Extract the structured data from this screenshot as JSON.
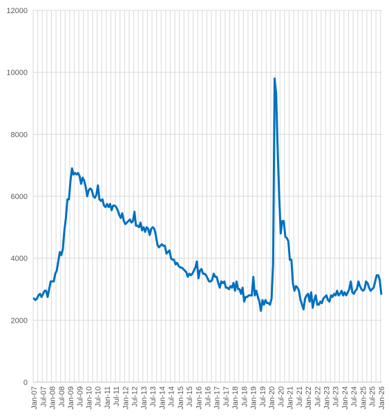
{
  "chart_data": {
    "type": "line",
    "categories": [
      "Jan-07",
      null,
      null,
      null,
      null,
      null,
      "Jul-07",
      null,
      null,
      null,
      null,
      null,
      "Jan-08",
      null,
      null,
      null,
      null,
      null,
      "Jul-08",
      null,
      null,
      null,
      null,
      null,
      "Jan-09",
      null,
      null,
      null,
      null,
      null,
      "Jul-09",
      null,
      null,
      null,
      null,
      null,
      "Jan-10",
      null,
      null,
      null,
      null,
      null,
      "Jul-10",
      null,
      null,
      null,
      null,
      null,
      "Jan-11",
      null,
      null,
      null,
      null,
      null,
      "Jul-11",
      null,
      null,
      null,
      null,
      null,
      "Jan-12",
      null,
      null,
      null,
      null,
      null,
      "Jul-12",
      null,
      null,
      null,
      null,
      null,
      "Jan-13",
      null,
      null,
      null,
      null,
      null,
      "Jul-13",
      null,
      null,
      null,
      null,
      null,
      "Jan-14",
      null,
      null,
      null,
      null,
      null,
      "Jul-14",
      null,
      null,
      null,
      null,
      null,
      "Jan-15",
      null,
      null,
      null,
      null,
      null,
      "Jul-15",
      null,
      null,
      null,
      null,
      null,
      "Jan-16",
      null,
      null,
      null,
      null,
      null,
      "Jul-16",
      null,
      null,
      null,
      null,
      null,
      "Jan-17",
      null,
      null,
      null,
      null,
      null,
      "Jul-17",
      null,
      null,
      null,
      null,
      null,
      "Jan-18",
      null,
      null,
      null,
      null,
      null,
      "Jul-18",
      null,
      null,
      null,
      null,
      null,
      "Jan-19",
      null,
      null,
      null,
      null,
      null,
      "Jul-19",
      null,
      null,
      null,
      null,
      null,
      "Jan-20",
      null,
      null,
      null,
      null,
      null,
      "Jul-20",
      null,
      null,
      null,
      null,
      null,
      "Jan-21",
      null,
      null,
      null,
      null,
      null,
      "Jul-21",
      null,
      null,
      null,
      null,
      null,
      "Jan-22",
      null,
      null,
      null,
      null,
      null,
      "Jul-22",
      null,
      null,
      null,
      null,
      null,
      "Jan-23",
      null,
      null,
      null,
      null,
      null,
      "Jul-23",
      null,
      null,
      null,
      null,
      null,
      "Jan-24",
      null,
      null,
      null,
      null,
      null,
      "Jul-24",
      null,
      null,
      null,
      null,
      null,
      "Jan-25",
      null,
      null,
      null,
      null,
      null,
      "Jul-25",
      null,
      null,
      null,
      null,
      null,
      "Jan-26"
    ],
    "values": [
      2700,
      2650,
      2700,
      2800,
      2850,
      2750,
      2850,
      2950,
      2950,
      2750,
      3000,
      3250,
      3250,
      3250,
      3500,
      3600,
      3900,
      4200,
      4100,
      4300,
      4900,
      5300,
      5900,
      5900,
      6500,
      6900,
      6700,
      6750,
      6700,
      6750,
      6650,
      6400,
      6600,
      6500,
      6300,
      6000,
      6200,
      6250,
      6200,
      6000,
      5950,
      6050,
      6350,
      5900,
      5850,
      5900,
      5700,
      5650,
      5750,
      5650,
      5750,
      5550,
      5700,
      5700,
      5650,
      5550,
      5400,
      5300,
      5450,
      5200,
      5100,
      5150,
      5200,
      5250,
      5150,
      5200,
      5500,
      5050,
      5050,
      5000,
      5150,
      4900,
      5000,
      4850,
      5000,
      4950,
      4750,
      4950,
      5000,
      4950,
      4750,
      4450,
      4350,
      4400,
      4450,
      4400,
      4400,
      4150,
      4200,
      4250,
      4000,
      3950,
      3950,
      3800,
      3850,
      3750,
      3700,
      3700,
      3650,
      3600,
      3550,
      3400,
      3500,
      3450,
      3500,
      3600,
      3700,
      3900,
      3350,
      3600,
      3650,
      3500,
      3500,
      3450,
      3350,
      3250,
      3250,
      3300,
      3500,
      3400,
      3400,
      3200,
      3050,
      3250,
      3200,
      3250,
      3050,
      3050,
      3000,
      3100,
      3050,
      3200,
      2950,
      3250,
      3000,
      3000,
      2850,
      3050,
      2600,
      2750,
      2750,
      2800,
      2800,
      2800,
      3400,
      2800,
      2950,
      2750,
      2600,
      2300,
      2650,
      2500,
      2650,
      2550,
      2550,
      2500,
      2700,
      3800,
      9800,
      9300,
      7500,
      6000,
      4800,
      5200,
      5200,
      4700,
      4650,
      4550,
      3950,
      3950,
      3200,
      2950,
      3100,
      3050,
      2950,
      2650,
      2500,
      2350,
      2700,
      2800,
      2850,
      2600,
      2900,
      2400,
      2650,
      2800,
      2500,
      2500,
      2600,
      2550,
      2700,
      2750,
      2800,
      2650,
      2600,
      2800,
      2750,
      2850,
      2800,
      2950,
      2800,
      2850,
      2950,
      2800,
      2900,
      2800,
      2900,
      3000,
      3250,
      2900,
      2850,
      2950,
      3000,
      3250,
      3100,
      3000,
      2950,
      3000,
      3250,
      3200,
      3050,
      2950,
      3000,
      3050,
      3250,
      3450,
      3450,
      3300,
      2850
    ],
    "color": "#0070c0",
    "ylim": [
      0,
      12000
    ],
    "yticks": [
      0,
      2000,
      4000,
      6000,
      8000,
      10000,
      12000
    ],
    "grid": true
  }
}
